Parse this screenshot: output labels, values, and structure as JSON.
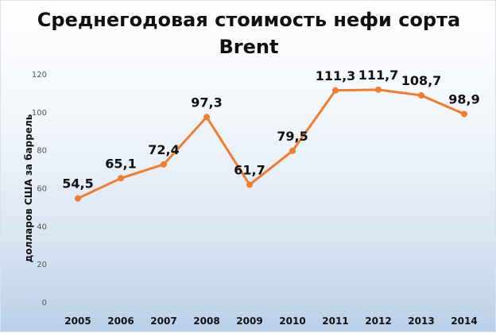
{
  "chart_data": {
    "type": "line",
    "title_lines": [
      "Среднегодовая стоимость нефи сорта",
      "Brent"
    ],
    "xlabel": "",
    "ylabel": "долларов США за баррель",
    "ylim": [
      0,
      120
    ],
    "y_ticks": [
      "0",
      "20",
      "40",
      "60",
      "80",
      "100",
      "120"
    ],
    "categories": [
      "2005",
      "2006",
      "2007",
      "2008",
      "2009",
      "2010",
      "2011",
      "2012",
      "2013",
      "2014"
    ],
    "series": [
      {
        "values": [
          54.5,
          65.1,
          72.4,
          97.3,
          61.7,
          79.5,
          111.3,
          111.7,
          108.7,
          98.9
        ],
        "labels": [
          "54,5",
          "65,1",
          "72,4",
          "97,3",
          "61,7",
          "79,5",
          "111,3",
          "111,7",
          "108,7",
          "98,9"
        ],
        "color": "#ED7D31"
      }
    ],
    "grid": false,
    "legend": "none"
  }
}
